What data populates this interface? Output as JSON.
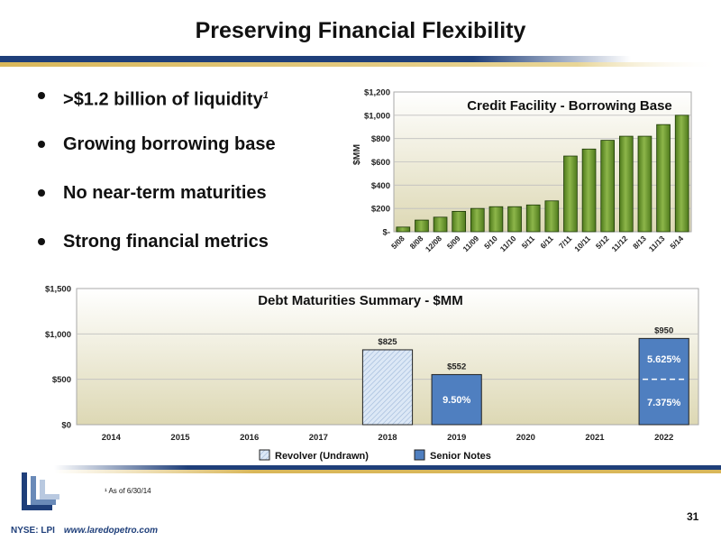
{
  "slide": {
    "title": "Preserving Financial Flexibility",
    "bullets": [
      {
        "text": "$1.2 billion of liquidity",
        "prefix": ">",
        "sup": "1"
      },
      {
        "text": "Growing borrowing base",
        "prefix": "",
        "sup": ""
      },
      {
        "text": "No near-term maturities",
        "prefix": "",
        "sup": ""
      },
      {
        "text": "Strong financial metrics",
        "prefix": "",
        "sup": ""
      }
    ],
    "footnote": "¹ As of 6/30/14",
    "page_number": "31",
    "ticker": "NYSE: LPI",
    "url": "www.laredopetro.com",
    "colors": {
      "band_navy": "#1f3f7a",
      "band_gold": "#d9b75a",
      "green_bar": "#6f9a2e",
      "blue_bar": "#4f7fc0"
    }
  },
  "chart_data": [
    {
      "type": "bar",
      "title": "Credit Facility - Borrowing Base",
      "ylabel": "$MM",
      "categories": [
        "5/08",
        "8/08",
        "12/08",
        "5/09",
        "11/09",
        "5/10",
        "11/10",
        "5/11",
        "6/11",
        "7/11",
        "10/11",
        "5/12",
        "11/12",
        "8/13",
        "11/13",
        "5/14"
      ],
      "values": [
        40,
        100,
        125,
        175,
        200,
        215,
        215,
        230,
        265,
        650,
        710,
        785,
        820,
        820,
        920,
        1000
      ],
      "yticks": [
        "$-",
        "$200",
        "$400",
        "$600",
        "$800",
        "$1,000",
        "$1,200"
      ],
      "ylim": [
        0,
        1200
      ],
      "grid": true,
      "legend": "none"
    },
    {
      "type": "bar",
      "stacked": true,
      "title": "Debt Maturities Summary - $MM",
      "categories": [
        "2014",
        "2015",
        "2016",
        "2017",
        "2018",
        "2019",
        "2020",
        "2021",
        "2022"
      ],
      "yticks": [
        "$0",
        "$500",
        "$1,000",
        "$1,500"
      ],
      "ylim": [
        0,
        1500
      ],
      "grid": true,
      "legend": "bottom",
      "series": [
        {
          "name": "Revolver (Undrawn)",
          "values": [
            0,
            0,
            0,
            0,
            825,
            0,
            0,
            0,
            0
          ]
        },
        {
          "name": "Senior Notes",
          "values": [
            0,
            0,
            0,
            0,
            0,
            552,
            0,
            0,
            950
          ]
        }
      ],
      "data_labels": [
        "",
        "",
        "",
        "",
        "$825",
        "$552",
        "",
        "",
        "$950"
      ],
      "segments": [
        {
          "category": "2019",
          "bottom": 0,
          "top": 552,
          "label": "9.50%"
        },
        {
          "category": "2022",
          "bottom": 0,
          "top": 500,
          "label": "7.375%"
        },
        {
          "category": "2022",
          "bottom": 500,
          "top": 950,
          "label": "5.625%"
        }
      ]
    }
  ]
}
